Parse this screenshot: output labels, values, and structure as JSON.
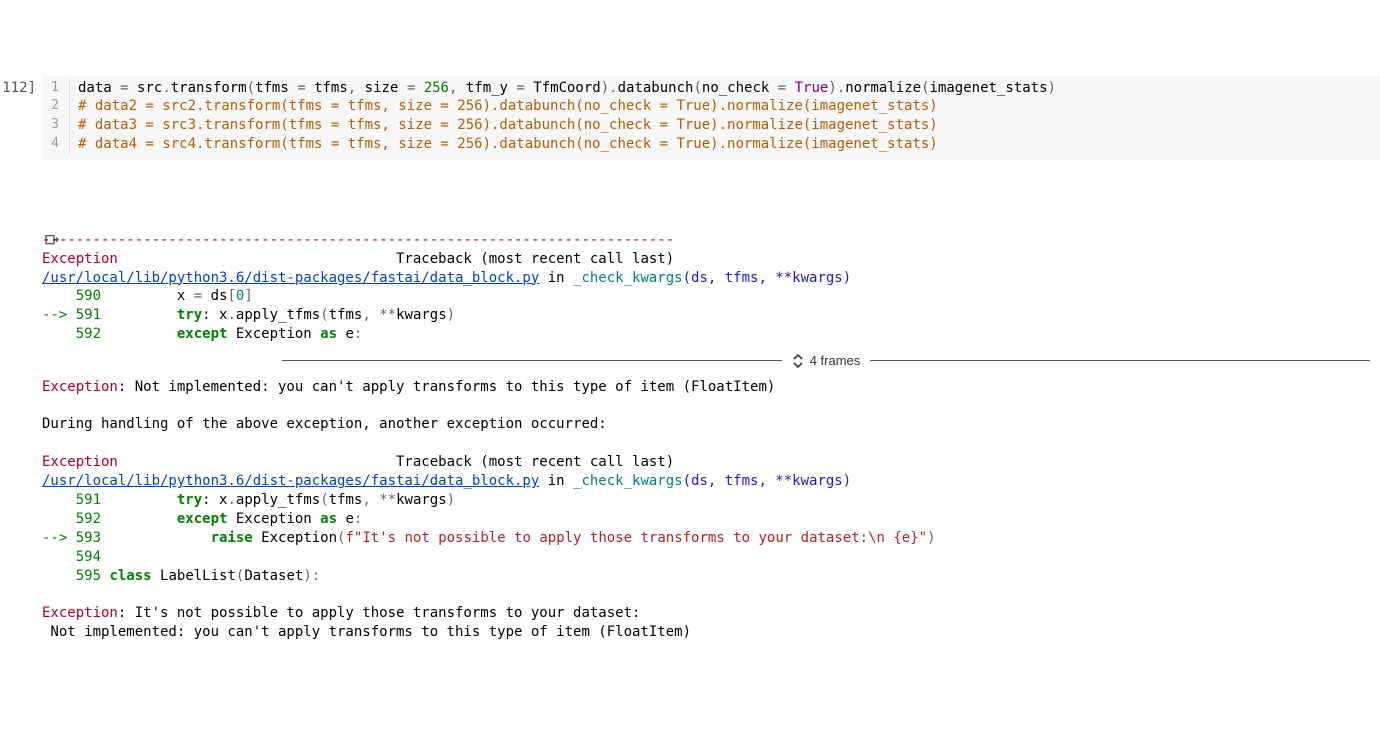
{
  "cell_prompt": "112]",
  "code_lines": [
    {
      "n": "1",
      "tokens": [
        {
          "t": "data ",
          "c": "tok-name"
        },
        {
          "t": "=",
          "c": "tok-op"
        },
        {
          "t": " src",
          "c": "tok-name"
        },
        {
          "t": ".",
          "c": "tok-op"
        },
        {
          "t": "transform",
          "c": "tok-name"
        },
        {
          "t": "(",
          "c": "tok-op"
        },
        {
          "t": "tfms ",
          "c": "tok-name"
        },
        {
          "t": "=",
          "c": "tok-op"
        },
        {
          "t": " tfms",
          "c": "tok-name"
        },
        {
          "t": ", ",
          "c": "tok-op"
        },
        {
          "t": "size ",
          "c": "tok-name"
        },
        {
          "t": "=",
          "c": "tok-op"
        },
        {
          "t": " ",
          "c": ""
        },
        {
          "t": "256",
          "c": "tok-num"
        },
        {
          "t": ", ",
          "c": "tok-op"
        },
        {
          "t": "tfm_y ",
          "c": "tok-name"
        },
        {
          "t": "=",
          "c": "tok-op"
        },
        {
          "t": " TfmCoord",
          "c": "tok-name"
        },
        {
          "t": ")",
          "c": "tok-op"
        },
        {
          "t": ".",
          "c": "tok-op"
        },
        {
          "t": "databunch",
          "c": "tok-name"
        },
        {
          "t": "(",
          "c": "tok-op"
        },
        {
          "t": "no_check ",
          "c": "tok-name"
        },
        {
          "t": "=",
          "c": "tok-op"
        },
        {
          "t": " ",
          "c": ""
        },
        {
          "t": "True",
          "c": "tok-bool"
        },
        {
          "t": ")",
          "c": "tok-op"
        },
        {
          "t": ".",
          "c": "tok-op"
        },
        {
          "t": "normalize",
          "c": "tok-name"
        },
        {
          "t": "(",
          "c": "tok-op"
        },
        {
          "t": "imagenet_stats",
          "c": "tok-name"
        },
        {
          "t": ")",
          "c": "tok-op"
        }
      ]
    },
    {
      "n": "2",
      "tokens": [
        {
          "t": "# data2 = src2.transform(tfms = tfms, size = 256).databunch(no_check = True).normalize(imagenet_stats)",
          "c": "tok-comment"
        }
      ]
    },
    {
      "n": "3",
      "tokens": [
        {
          "t": "# data3 = src3.transform(tfms = tfms, size = 256).databunch(no_check = True).normalize(imagenet_stats)",
          "c": "tok-comment"
        }
      ]
    },
    {
      "n": "4",
      "tokens": [
        {
          "t": "# data4 = src4.transform(tfms = tfms, size = 256).databunch(no_check = True).normalize(imagenet_stats)",
          "c": "tok-comment"
        }
      ]
    }
  ],
  "separator": "---------------------------------------------------------------------------",
  "tb1_header_exc": "Exception",
  "tb1_header_rest": "                                 Traceback (most recent call last)",
  "tb1_file": "/usr/local/lib/python3.6/dist-packages/fastai/data_block.py",
  "tb1_in": " in ",
  "tb1_fn": "_check_kwargs",
  "tb1_sig": "(ds, tfms, **kwargs)",
  "tb1_l590_no": "    590",
  "tb1_l590": "         x ",
  "tb1_l590_eq": "=",
  "tb1_l590_b": " ds",
  "tb1_l590_br": "[",
  "tb1_l590_zero": "0",
  "tb1_l590_br2": "]",
  "tb1_l591_arrow": "--> ",
  "tb1_l591_no": "591",
  "tb1_l591_a": "         ",
  "tb1_l591_try": "try",
  "tb1_l591_b": ": x",
  "tb1_l591_dot": ".",
  "tb1_l591_c": "apply_tfms",
  "tb1_l591_p": "(",
  "tb1_l591_d": "tfms",
  "tb1_l591_comma": ",",
  "tb1_l591_e": " ",
  "tb1_l591_star": "**",
  "tb1_l591_f": "kwargs",
  "tb1_l591_p2": ")",
  "tb1_l592_no": "    592",
  "tb1_l592_a": "         ",
  "tb1_l592_except": "except",
  "tb1_l592_b": " Exception ",
  "tb1_l592_as": "as",
  "tb1_l592_c": " e",
  "tb1_l592_colon": ":",
  "frames_label": "4 frames",
  "exc1_label": "Exception",
  "exc1_msg": ": Not implemented: you can't apply transforms to this type of item (FloatItem)",
  "during": "During handling of the above exception, another exception occurred:",
  "tb2_header_exc": "Exception",
  "tb2_header_rest": "                                 Traceback (most recent call last)",
  "tb2_file": "/usr/local/lib/python3.6/dist-packages/fastai/data_block.py",
  "tb2_in": " in ",
  "tb2_fn": "_check_kwargs",
  "tb2_sig": "(ds, tfms, **kwargs)",
  "tb2_l591_no": "    591",
  "tb2_l591_a": "         ",
  "tb2_l591_try": "try",
  "tb2_l591_b": ": x",
  "tb2_l591_dot": ".",
  "tb2_l591_c": "apply_tfms",
  "tb2_l591_p": "(",
  "tb2_l591_d": "tfms",
  "tb2_l591_comma": ",",
  "tb2_l591_sp": " ",
  "tb2_l591_star": "**",
  "tb2_l591_f": "kwargs",
  "tb2_l591_p2": ")",
  "tb2_l592_no": "    592",
  "tb2_l592_a": "         ",
  "tb2_l592_except": "except",
  "tb2_l592_b": " Exception ",
  "tb2_l592_as": "as",
  "tb2_l592_c": " e",
  "tb2_l592_colon": ":",
  "tb2_l593_arrow": "--> ",
  "tb2_l593_no": "593",
  "tb2_l593_a": "             ",
  "tb2_l593_raise": "raise",
  "tb2_l593_b": " Exception",
  "tb2_l593_p": "(",
  "tb2_l593_f": "f\"It's not possible to apply those transforms to your dataset:\\n {e}\"",
  "tb2_l593_p2": ")",
  "tb2_l594_no": "    594",
  "tb2_l594_a": " ",
  "tb2_l595_no": "    595",
  "tb2_l595_a": " ",
  "tb2_l595_class": "class",
  "tb2_l595_b": " LabelList",
  "tb2_l595_p": "(",
  "tb2_l595_c": "Dataset",
  "tb2_l595_p2": "):",
  "exc2_label": "Exception",
  "exc2_msg1": ": It's not possible to apply those transforms to your dataset:",
  "exc2_msg2": " Not implemented: you can't apply transforms to this type of item (FloatItem)"
}
